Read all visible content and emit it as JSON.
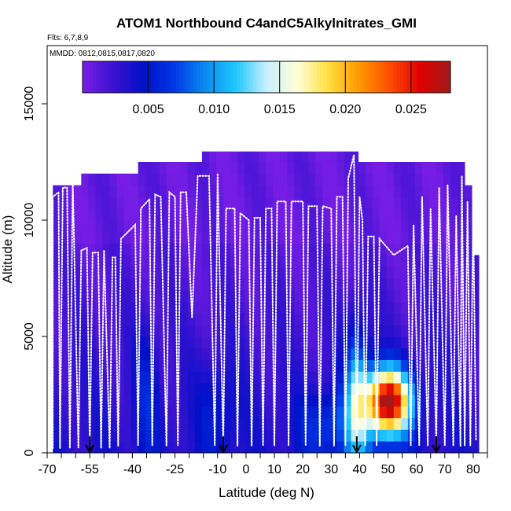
{
  "chart_data": {
    "type": "heatmap",
    "title": "ATOM1 Northbound C4andC5Alkylnitrates_GMI",
    "subtitle_flights": "Flts: 6,7,8,9",
    "subtitle_dates": "MMDD: 0812,0815,0817,0820",
    "xlabel": "Latitude (deg N)",
    "ylabel": "Altitude (m)",
    "xlim": [
      -70,
      85
    ],
    "ylim": [
      0,
      17500
    ],
    "x_ticks": [
      -70,
      -55,
      -40,
      -25,
      -10,
      0,
      10,
      20,
      30,
      40,
      50,
      60,
      70,
      80
    ],
    "x_tick_labels": [
      "-70",
      "-55",
      "-40",
      "-25",
      "-10",
      "0",
      "10",
      "20",
      "30",
      "40",
      "50",
      "60",
      "70",
      "80"
    ],
    "y_ticks": [
      0,
      5000,
      10000,
      15000
    ],
    "y_tick_labels": [
      "0",
      "5000",
      "10000",
      "15000"
    ],
    "colorbar": {
      "range": [
        0,
        0.028
      ],
      "ticks": [
        0.005,
        0.01,
        0.015,
        0.02,
        0.025
      ],
      "tick_labels": [
        "0.005",
        "0.010",
        "0.015",
        "0.020",
        "0.025"
      ],
      "colors": [
        "#7a1ee6",
        "#3a12d0",
        "#0010c8",
        "#0038e6",
        "#0a8cf0",
        "#1ec8ff",
        "#c8f0ff",
        "#ffffd8",
        "#ffe040",
        "#ff9a00",
        "#ff5000",
        "#e00000",
        "#a01a1a"
      ]
    },
    "ceiling_profile": [
      {
        "x": -68,
        "y": 11500
      },
      {
        "x": -57,
        "y": 12000
      },
      {
        "x": -37,
        "y": 12000
      },
      {
        "x": -38,
        "y": 12500
      },
      {
        "x": -16,
        "y": 12500
      },
      {
        "x": -16,
        "y": 12950
      },
      {
        "x": 40,
        "y": 12950
      },
      {
        "x": 40,
        "y": 12500
      },
      {
        "x": 76,
        "y": 12500
      },
      {
        "x": 77,
        "y": 11500
      },
      {
        "x": 80,
        "y": 11000
      },
      {
        "x": 80,
        "y": 8500
      },
      {
        "x": 82,
        "y": 8500
      }
    ],
    "enhancements": [
      {
        "x": 50,
        "y": 2200,
        "sx": 5.5,
        "sy": 1000,
        "amp": 0.026
      },
      {
        "x": 39,
        "y": 2300,
        "sx": 3,
        "sy": 2200,
        "amp": 0.009
      },
      {
        "x": 30,
        "y": 1200,
        "sx": 8,
        "sy": 1100,
        "amp": 0.004
      },
      {
        "x": -35,
        "y": 2500,
        "sx": 3,
        "sy": 2200,
        "amp": 0.003
      },
      {
        "x": -10,
        "y": 1800,
        "sx": 5,
        "sy": 1500,
        "amp": 0.0025
      }
    ],
    "flight_track": [
      [
        -68,
        200
      ],
      [
        -68,
        11000
      ],
      [
        -66,
        11200
      ],
      [
        -65.5,
        200
      ],
      [
        -64.5,
        11400
      ],
      [
        -63,
        11400
      ],
      [
        -62,
        200
      ],
      [
        -61,
        11800
      ],
      [
        -59,
        200
      ],
      [
        -58,
        8700
      ],
      [
        -56,
        8800
      ],
      [
        -55,
        200
      ],
      [
        -54,
        8600
      ],
      [
        -52,
        8600
      ],
      [
        -51,
        200
      ],
      [
        -50,
        8700
      ],
      [
        -48,
        200
      ],
      [
        -47,
        8400
      ],
      [
        -46,
        8400
      ],
      [
        -45,
        300
      ],
      [
        -44,
        9200
      ],
      [
        -39,
        9800
      ],
      [
        -38,
        300
      ],
      [
        -37,
        10500
      ],
      [
        -34,
        10900
      ],
      [
        -33,
        300
      ],
      [
        -32,
        11100
      ],
      [
        -30,
        11000
      ],
      [
        -28,
        300
      ],
      [
        -27,
        11200
      ],
      [
        -25,
        11000
      ],
      [
        -24,
        300
      ],
      [
        -23,
        11200
      ],
      [
        -21,
        11200
      ],
      [
        -19,
        5800
      ],
      [
        -17,
        11900
      ],
      [
        -13,
        11900
      ],
      [
        -11,
        300
      ],
      [
        -10,
        12000
      ],
      [
        -8,
        300
      ],
      [
        -7,
        10500
      ],
      [
        -4,
        10500
      ],
      [
        -3,
        300
      ],
      [
        -2,
        10300
      ],
      [
        1,
        10000
      ],
      [
        2,
        300
      ],
      [
        3,
        10100
      ],
      [
        5,
        10100
      ],
      [
        6,
        300
      ],
      [
        7,
        10500
      ],
      [
        9,
        10500
      ],
      [
        10,
        300
      ],
      [
        11,
        10800
      ],
      [
        14,
        10800
      ],
      [
        15,
        300
      ],
      [
        16,
        10800
      ],
      [
        20,
        10800
      ],
      [
        21,
        300
      ],
      [
        22,
        10600
      ],
      [
        25,
        10600
      ],
      [
        26,
        300
      ],
      [
        27,
        10600
      ],
      [
        30,
        10500
      ],
      [
        31,
        300
      ],
      [
        32,
        11000
      ],
      [
        34,
        11000
      ],
      [
        35,
        300
      ],
      [
        36,
        11800
      ],
      [
        38,
        12800
      ],
      [
        39,
        300
      ],
      [
        40,
        11000
      ],
      [
        41,
        10000
      ],
      [
        42,
        300
      ],
      [
        43,
        9300
      ],
      [
        45,
        9300
      ],
      [
        46,
        300
      ],
      [
        47,
        9200
      ],
      [
        52,
        8500
      ],
      [
        57,
        8900
      ],
      [
        58,
        300
      ],
      [
        59,
        9800
      ],
      [
        61,
        300
      ],
      [
        62,
        11000
      ],
      [
        64,
        300
      ],
      [
        65,
        10500
      ],
      [
        67,
        300
      ],
      [
        68,
        11400
      ],
      [
        70,
        300
      ],
      [
        71,
        11500
      ],
      [
        73,
        300
      ],
      [
        74,
        10200
      ],
      [
        75.5,
        300
      ],
      [
        76,
        11900
      ],
      [
        77,
        300
      ],
      [
        78,
        10800
      ],
      [
        79,
        300
      ],
      [
        80,
        10300
      ],
      [
        81,
        500
      ]
    ],
    "arrow_markers_x": [
      -55,
      -8,
      39,
      67
    ],
    "grid": false,
    "legend": "colorbar-top"
  }
}
